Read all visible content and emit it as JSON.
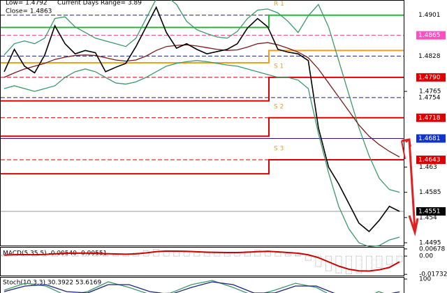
{
  "chart_data": [
    {
      "type": "line",
      "header": [
        "Low= 1.4792",
        "Current Days Range= 3.89",
        "Close= 1.4863"
      ],
      "ylim": [
        1.449,
        1.4928
      ],
      "yticks": [
        1.4765,
        1.463,
        1.4585,
        1.454,
        {
          "value": 1.4495,
          "label": "1.4495"
        }
      ],
      "levels": [
        {
          "value": 1.4901,
          "label": "1.4901",
          "color": "#1a237e",
          "badge": "#ffffff",
          "dash": true
        },
        {
          "value": 1.4865,
          "label": "1.4865",
          "color": "#e040a0",
          "badge": "#ff4fc0",
          "dash": true
        },
        {
          "value": 1.4828,
          "label": "1.4828",
          "color": "#1a237e",
          "badge": "#ffffff",
          "dash": true
        },
        {
          "value": 1.479,
          "label": "1.4790",
          "color": "#cc0000",
          "badge": "#dd0000",
          "dash": true
        },
        {
          "value": 1.4754,
          "label": "1.4754",
          "color": "#1a237e",
          "badge": "#ffffff",
          "dash": true
        },
        {
          "value": 1.4718,
          "label": "1.4718",
          "color": "#cc0000",
          "badge": "#dd0000",
          "dash": true
        },
        {
          "value": 1.4681,
          "label": "1.4681",
          "color": "#3a0a7a",
          "badge": "#1133cc",
          "dash": false
        },
        {
          "value": 1.4643,
          "label": "1.4643",
          "color": "#cc0000",
          "badge": "#dd0000",
          "dash": true
        },
        {
          "value": 1.4551,
          "label": "1.4551",
          "color": "#999999",
          "badge": "#000000",
          "dash": false
        }
      ],
      "pivots": [
        {
          "label": "R 1",
          "color": "#22bb33",
          "values": [
            1.4879,
            1.4901
          ]
        },
        {
          "label": null,
          "color": "#f0a020",
          "values": [
            1.4816,
            1.4838
          ]
        },
        {
          "label": "S 1",
          "color": "#dd0000",
          "values": [
            1.4748,
            1.479
          ]
        },
        {
          "label": "S 2",
          "color": "#dd0000",
          "values": [
            1.4685,
            1.4718
          ]
        },
        {
          "label": "S 3",
          "color": "#dd0000",
          "values": [
            1.4618,
            1.4643
          ]
        }
      ],
      "series": [
        {
          "color": "#3a9a6a",
          "values": [
            1.483,
            1.485,
            1.4855,
            1.485,
            1.486,
            1.4895,
            1.4898,
            1.488,
            1.487,
            1.486,
            1.4855,
            1.485,
            1.4845,
            1.486,
            1.4895,
            1.493,
            1.4935,
            1.492,
            1.489,
            1.4875,
            1.4868,
            1.4862,
            1.486,
            1.4872,
            1.4895,
            1.491,
            1.4912,
            1.4905,
            1.489,
            1.487,
            1.49,
            1.492,
            1.488,
            1.482,
            1.476,
            1.47,
            1.465,
            1.461,
            1.459,
            1.4585
          ]
        },
        {
          "color": "#3a9a6a",
          "values": [
            1.477,
            1.4775,
            1.477,
            1.4765,
            1.477,
            1.4775,
            1.479,
            1.48,
            1.4805,
            1.48,
            1.479,
            1.478,
            1.4778,
            1.4782,
            1.479,
            1.48,
            1.481,
            1.4815,
            1.4818,
            1.482,
            1.4818,
            1.4815,
            1.4812,
            1.481,
            1.4805,
            1.48,
            1.4795,
            1.479,
            1.479,
            1.4785,
            1.477,
            1.469,
            1.462,
            1.456,
            1.452,
            1.4495,
            1.4488,
            1.449,
            1.45,
            1.4505
          ]
        },
        {
          "color": "#7a1a1a",
          "values": [
            1.479,
            1.4798,
            1.4805,
            1.481,
            1.4815,
            1.4822,
            1.4826,
            1.4829,
            1.483,
            1.4829,
            1.4825,
            1.4821,
            1.4819,
            1.4821,
            1.4828,
            1.4838,
            1.4845,
            1.4847,
            1.4848,
            1.4846,
            1.4843,
            1.484,
            1.4838,
            1.4839,
            1.4844,
            1.485,
            1.4852,
            1.4848,
            1.4842,
            1.4835,
            1.4825,
            1.4805,
            1.478,
            1.4755,
            1.473,
            1.4705,
            1.4685,
            1.467,
            1.4658,
            1.4648
          ]
        },
        {
          "color": "#000000",
          "values": [
            1.48,
            1.484,
            1.481,
            1.4798,
            1.483,
            1.4882,
            1.485,
            1.4832,
            1.4838,
            1.4834,
            1.48,
            1.4808,
            1.4815,
            1.4845,
            1.488,
            1.4915,
            1.487,
            1.4842,
            1.485,
            1.484,
            1.4832,
            1.4836,
            1.484,
            1.485,
            1.4878,
            1.4895,
            1.488,
            1.484,
            1.4835,
            1.4832,
            1.482,
            1.47,
            1.463,
            1.46,
            1.4565,
            1.453,
            1.4515,
            1.4535,
            1.456,
            1.4551
          ]
        }
      ]
    },
    {
      "type": "macd",
      "title": "MACD(5,35,5) -0.00540 -0.00551",
      "ylim": [
        -0.0185,
        0.008
      ],
      "yticks": [
        0.00678,
        {
          "value": 0,
          "label": "0.00"
        },
        -0.01732
      ],
      "histogram": {
        "color": "#aaaaaa",
        "values": [
          0.001,
          0.002,
          0.0015,
          0.001,
          0.002,
          0.004,
          0.0035,
          0.003,
          0.003,
          0.0025,
          0.001,
          0.0012,
          0.0015,
          0.003,
          0.005,
          0.0065,
          0.005,
          0.004,
          0.0038,
          0.0032,
          0.003,
          0.003,
          0.0032,
          0.0035,
          0.0045,
          0.0055,
          0.005,
          0.003,
          0.002,
          0.001,
          -0.004,
          -0.01,
          -0.014,
          -0.016,
          -0.017,
          -0.016,
          -0.014,
          -0.011,
          -0.008,
          -0.0054
        ]
      },
      "signal": {
        "color": "#cc0000",
        "values": [
          0.001,
          0.0013,
          0.0014,
          0.0013,
          0.0015,
          0.0022,
          0.0026,
          0.0028,
          0.0028,
          0.0027,
          0.0023,
          0.002,
          0.0018,
          0.0021,
          0.003,
          0.0042,
          0.0048,
          0.0047,
          0.0045,
          0.0041,
          0.0037,
          0.0035,
          0.0034,
          0.0034,
          0.0037,
          0.0042,
          0.0045,
          0.004,
          0.0034,
          0.0027,
          0.0012,
          -0.0015,
          -0.0055,
          -0.0095,
          -0.0125,
          -0.014,
          -0.0142,
          -0.013,
          -0.0108,
          -0.00551
        ]
      }
    },
    {
      "type": "stoch",
      "title": "Stoch(10,3,3) 30.3922 53.6169",
      "ylim": [
        0,
        100
      ],
      "yticks": [
        100
      ],
      "series": [
        {
          "color": "#3a9a6a",
          "values": [
            60,
            85,
            75,
            40,
            55,
            90,
            70,
            45,
            50,
            80,
            95,
            70,
            40,
            60,
            85,
            70,
            30,
            20,
            55,
            30
          ]
        },
        {
          "color": "#1a237e",
          "values": [
            55,
            75,
            80,
            55,
            50,
            80,
            80,
            55,
            45,
            70,
            90,
            80,
            50,
            50,
            75,
            75,
            45,
            25,
            40,
            54
          ]
        }
      ]
    }
  ]
}
